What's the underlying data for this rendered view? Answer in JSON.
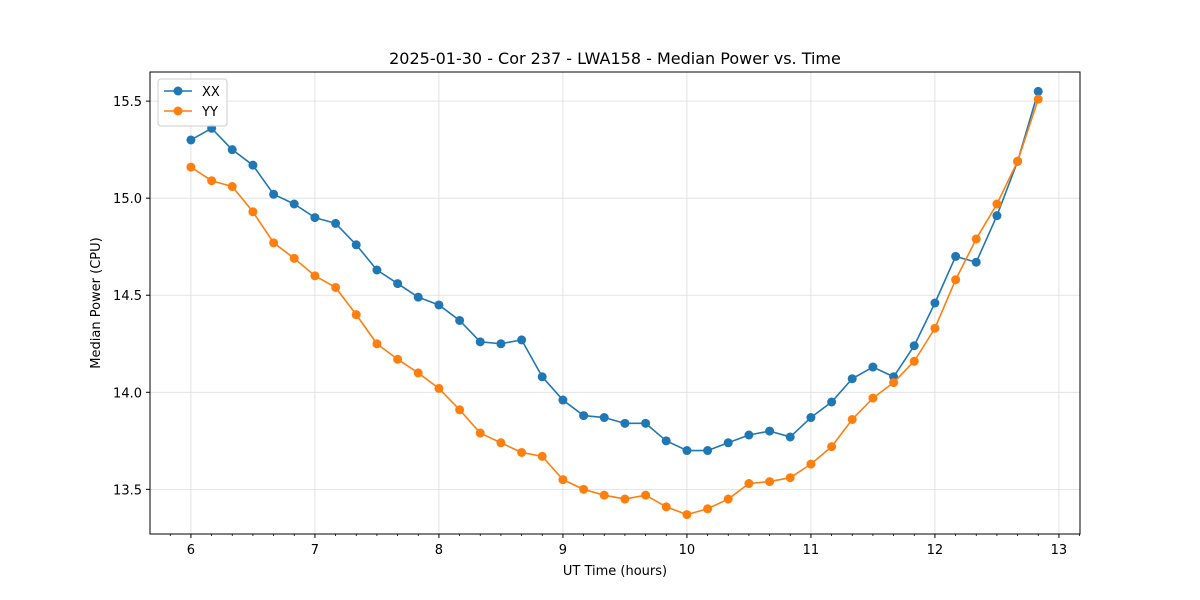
{
  "chart_data": {
    "type": "line",
    "title": "2025-01-30 - Cor 237 - LWA158 - Median Power vs. Time",
    "xlabel": "UT Time (hours)",
    "ylabel": "Median Power (CPU)",
    "xlim": [
      5.67,
      13.17
    ],
    "ylim": [
      13.27,
      15.65
    ],
    "xticks": [
      6,
      7,
      8,
      9,
      10,
      11,
      12,
      13
    ],
    "yticks": [
      13.5,
      14.0,
      14.5,
      15.0,
      15.5
    ],
    "ytick_labels": [
      "13.5",
      "14.0",
      "14.5",
      "15.0",
      "15.5"
    ],
    "grid": true,
    "legend_position": "top-left",
    "x": [
      6.0,
      6.167,
      6.333,
      6.5,
      6.667,
      6.833,
      7.0,
      7.167,
      7.333,
      7.5,
      7.667,
      7.833,
      8.0,
      8.167,
      8.333,
      8.5,
      8.667,
      8.833,
      9.0,
      9.167,
      9.333,
      9.5,
      9.667,
      9.833,
      10.0,
      10.167,
      10.333,
      10.5,
      10.667,
      10.833,
      11.0,
      11.167,
      11.333,
      11.5,
      11.667,
      11.833,
      12.0,
      12.167,
      12.333,
      12.5,
      12.667,
      12.833
    ],
    "series": [
      {
        "name": "XX",
        "color": "#1f77b4",
        "values": [
          15.3,
          15.36,
          15.25,
          15.17,
          15.02,
          14.97,
          14.9,
          14.87,
          14.76,
          14.63,
          14.56,
          14.49,
          14.45,
          14.37,
          14.26,
          14.25,
          14.27,
          14.08,
          13.96,
          13.88,
          13.87,
          13.84,
          13.84,
          13.75,
          13.7,
          13.7,
          13.74,
          13.78,
          13.8,
          13.77,
          13.87,
          13.95,
          14.07,
          14.13,
          14.08,
          14.24,
          14.46,
          14.7,
          14.67,
          14.91,
          15.19,
          15.55
        ]
      },
      {
        "name": "YY",
        "color": "#ff7f0e",
        "values": [
          15.16,
          15.09,
          15.06,
          14.93,
          14.77,
          14.69,
          14.6,
          14.54,
          14.4,
          14.25,
          14.17,
          14.1,
          14.02,
          13.91,
          13.79,
          13.74,
          13.69,
          13.67,
          13.55,
          13.5,
          13.47,
          13.45,
          13.47,
          13.41,
          13.37,
          13.4,
          13.45,
          13.53,
          13.54,
          13.56,
          13.63,
          13.72,
          13.86,
          13.97,
          14.05,
          14.16,
          14.33,
          14.58,
          14.79,
          14.97,
          15.19,
          15.51
        ]
      }
    ]
  }
}
